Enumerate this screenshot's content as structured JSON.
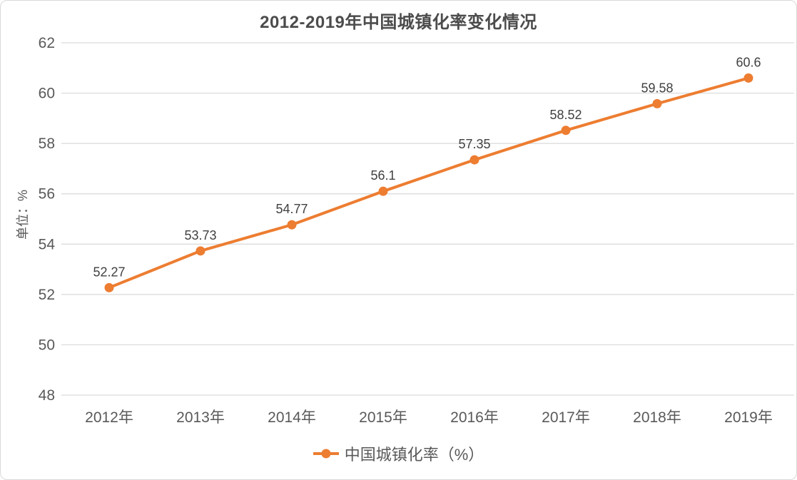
{
  "chart_data": {
    "type": "line",
    "title": "2012-2019年中国城镇化率变化情况",
    "xlabel": "",
    "ylabel": "单位：%",
    "categories": [
      "2012年",
      "2013年",
      "2014年",
      "2015年",
      "2016年",
      "2017年",
      "2018年",
      "2019年"
    ],
    "series": [
      {
        "name": "中国城镇化率（%）",
        "values": [
          52.27,
          53.73,
          54.77,
          56.1,
          57.35,
          58.52,
          59.58,
          60.6
        ],
        "point_labels": [
          "52.27",
          "53.73",
          "54.77",
          "56.1",
          "57.35",
          "58.52",
          "59.58",
          "60.6"
        ],
        "color": "#ED7D31"
      }
    ],
    "ylim": [
      48,
      62
    ],
    "ytick_step": 2,
    "ytick_labels": [
      "48",
      "50",
      "52",
      "54",
      "56",
      "58",
      "60",
      "62"
    ],
    "grid": true,
    "legend_position": "bottom"
  },
  "colors": {
    "accent": "#ED7D31",
    "grid": "#D9D9D9",
    "axis_text": "#595959",
    "data_label_text": "#404040",
    "card_border": "#D9D9D9",
    "background": "#FFFFFF"
  }
}
